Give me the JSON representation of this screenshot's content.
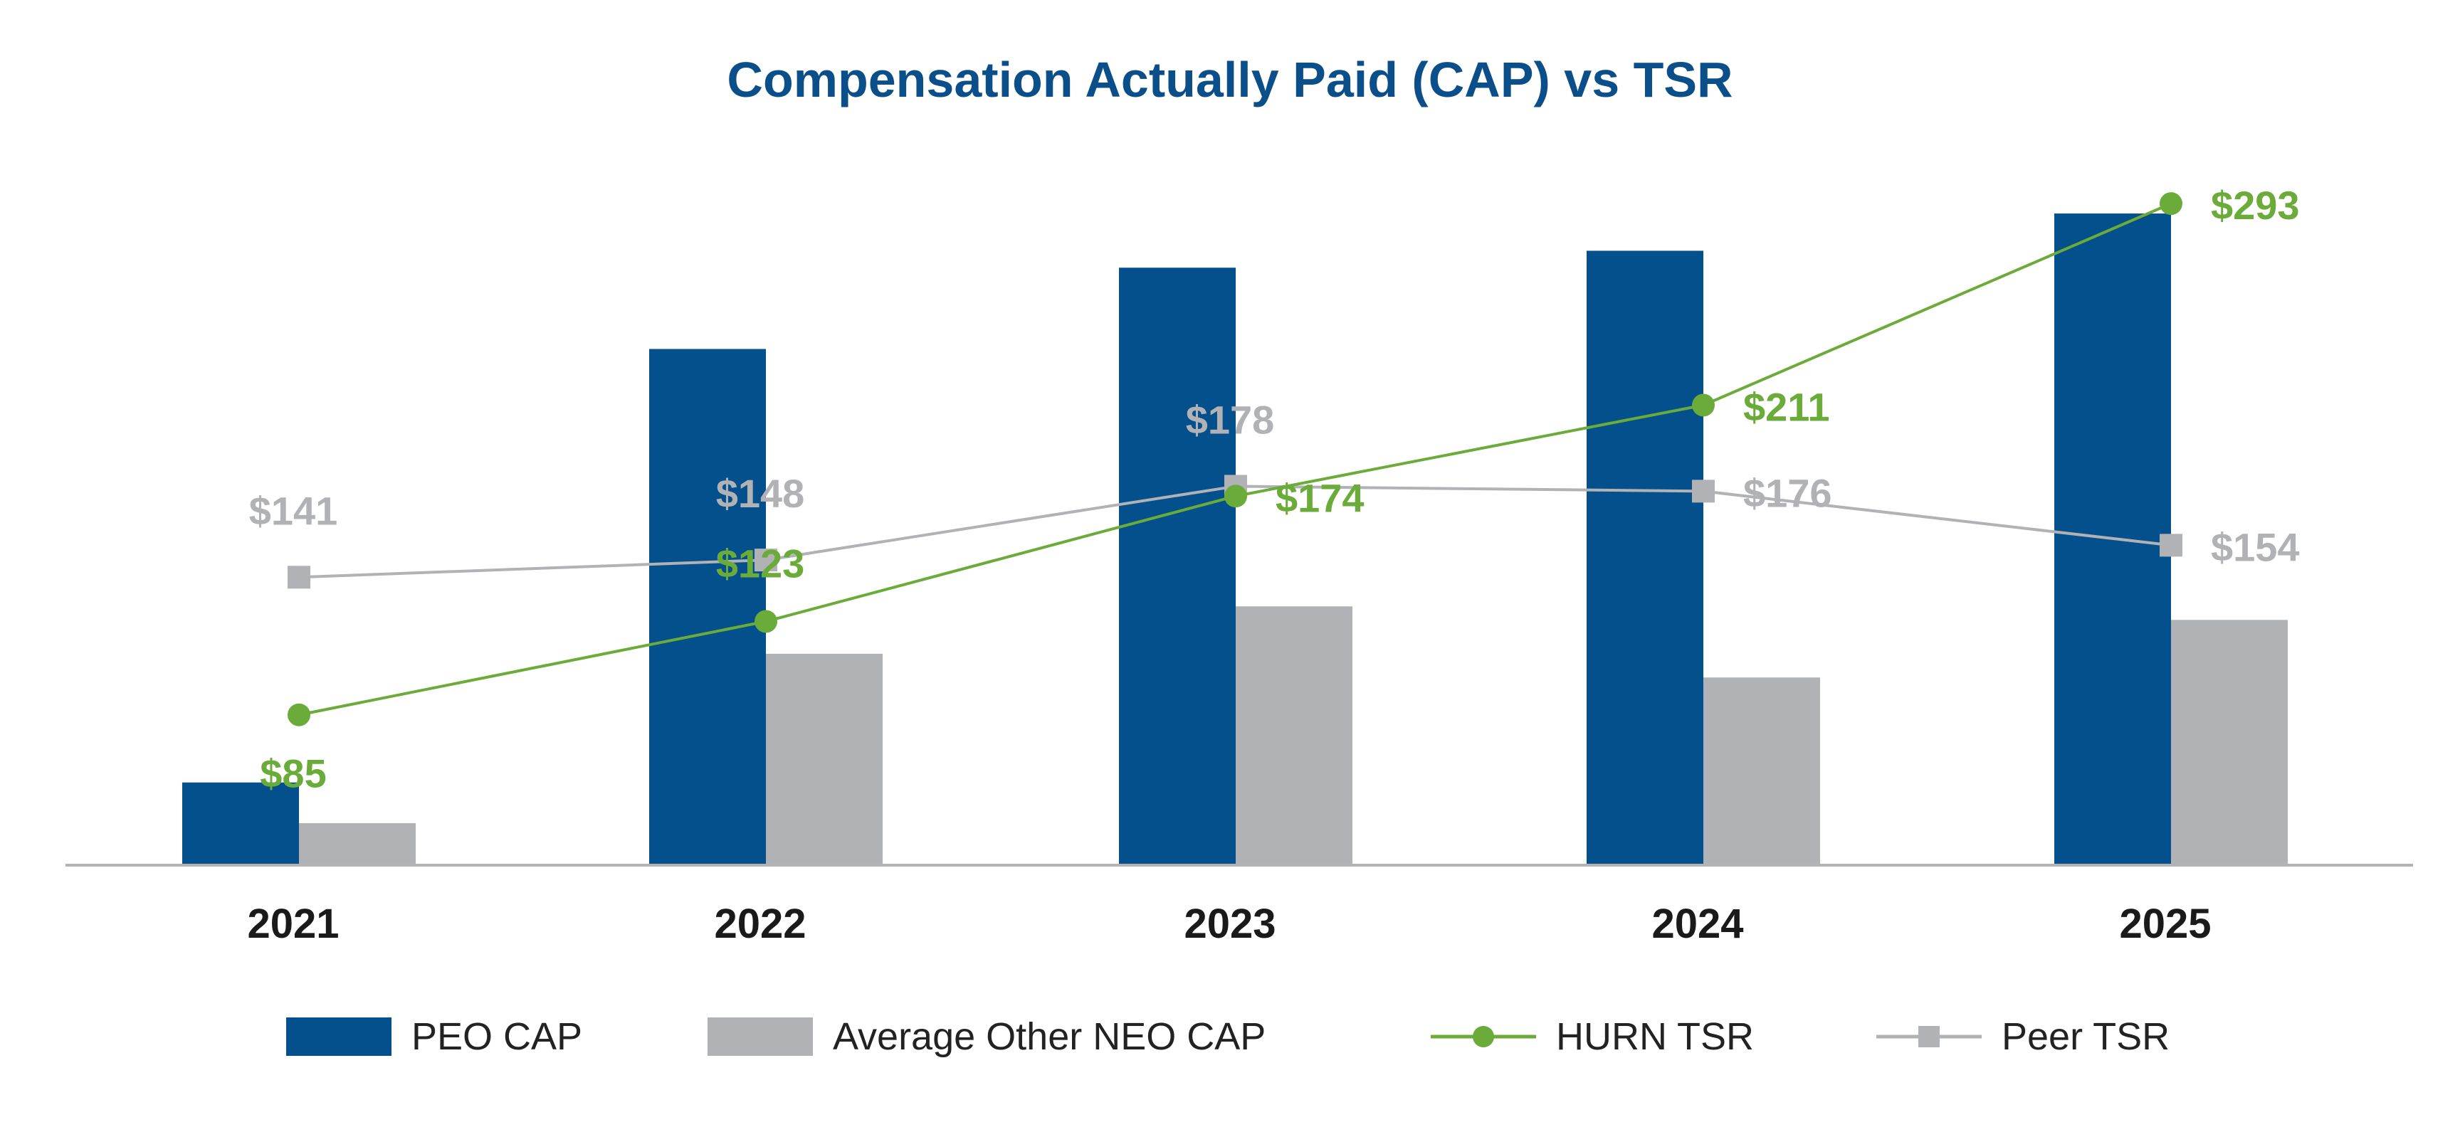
{
  "chart_data": {
    "type": "bar+line",
    "title": "Compensation Actually Paid (CAP) vs TSR",
    "categories": [
      "2021",
      "2022",
      "2023",
      "2024",
      "2025"
    ],
    "bar_series": [
      {
        "name": "PEO CAP",
        "values": [
          12,
          76,
          88,
          90.5,
          96
        ],
        "color": "#03508c"
      },
      {
        "name": "Average Other NEO CAP",
        "values": [
          6,
          31,
          38,
          27.5,
          36
        ],
        "color": "#b1b2b5"
      }
    ],
    "bar_ylim": [
      0,
      100
    ],
    "line_series": [
      {
        "name": "HURN TSR",
        "values": [
          85,
          123,
          174,
          211,
          293
        ],
        "labels": [
          "$85",
          "$123",
          "$174",
          "$211",
          "$293"
        ],
        "color": "#6aab3a",
        "marker": "circle"
      },
      {
        "name": "Peer TSR",
        "values": [
          141,
          148,
          178,
          176,
          154
        ],
        "labels": [
          "$141",
          "$148",
          "$178",
          "$176",
          "$154"
        ],
        "color": "#b1b2b5",
        "marker": "square"
      }
    ],
    "line_ylim": [
      25,
      300
    ],
    "xlabel": "",
    "ylabel": "",
    "grid": false,
    "legend_position": "bottom"
  },
  "legend": [
    "PEO CAP",
    "Average Other NEO CAP",
    "HURN TSR",
    "Peer TSR"
  ]
}
